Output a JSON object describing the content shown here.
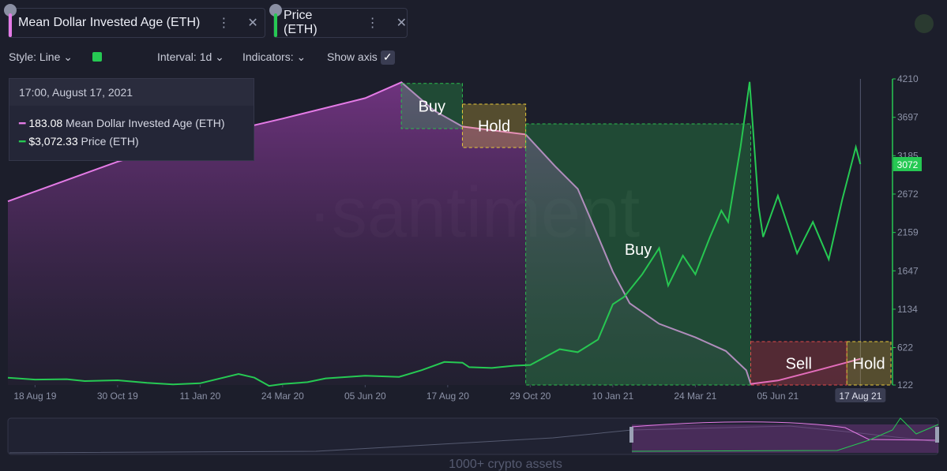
{
  "toolbar": {
    "tabs": [
      "Mean Dollar Invested Age (ETH)",
      "Price (ETH)"
    ],
    "style": "Style: Line",
    "interval": "Interval: 1d",
    "indicators": "Indicators:",
    "show_axis": "Show axis"
  },
  "tooltip": {
    "time": "17:00, August 17, 2021",
    "rows": [
      {
        "value": "183.08",
        "name": "Mean Dollar Invested Age (ETH)"
      },
      {
        "value": "$3,072.33",
        "name": "Price (ETH)"
      }
    ]
  },
  "watermark": "·santiment",
  "footer": "1000+ crypto assets",
  "chart_data": {
    "type": "line",
    "xlim": [
      "2019-07-25",
      "2021-09-13"
    ],
    "xticks": [
      {
        "value": "2019-08-18",
        "label": "18 Aug 19"
      },
      {
        "value": "2019-10-30",
        "label": "30 Oct 19"
      },
      {
        "value": "2020-01-11",
        "label": "11 Jan 20"
      },
      {
        "value": "2020-03-24",
        "label": "24 Mar 20"
      },
      {
        "value": "2020-06-05",
        "label": "05 Jun 20"
      },
      {
        "value": "2020-08-17",
        "label": "17 Aug 20"
      },
      {
        "value": "2020-10-29",
        "label": "29 Oct 20"
      },
      {
        "value": "2021-01-10",
        "label": "10 Jan 21"
      },
      {
        "value": "2021-03-24",
        "label": "24 Mar 21"
      },
      {
        "value": "2021-06-05",
        "label": "05 Jun 21"
      },
      {
        "value": "2021-08-17",
        "label": "17 Aug 21"
      }
    ],
    "ylim": [
      122,
      4210
    ],
    "yticks": [
      4210,
      3697,
      3185,
      2672,
      2159,
      1647,
      1134,
      622,
      122
    ],
    "y2lim": [
      160,
      430
    ],
    "current_price_label": "3072",
    "series": [
      {
        "name": "Mean Dollar Invested Age (ETH)",
        "color": "#e47be6",
        "axis": "y2",
        "x": [
          "2019-07-25",
          "2019-10-30",
          "2020-01-11",
          "2020-03-24",
          "2020-06-05",
          "2020-07-07",
          "2020-08-05",
          "2020-08-30",
          "2020-10-25",
          "2020-11-20",
          "2020-12-10",
          "2020-12-28",
          "2021-01-10",
          "2021-01-25",
          "2021-02-20",
          "2021-03-24",
          "2021-04-20",
          "2021-05-08",
          "2021-05-12",
          "2021-06-05",
          "2021-07-10",
          "2021-08-17"
        ],
        "values": [
          322,
          357,
          378,
          395,
          413,
          427,
          402,
          388,
          381,
          353,
          333,
          291,
          260,
          232,
          214,
          202,
          190,
          173,
          161,
          164,
          173,
          183.08
        ]
      },
      {
        "name": "Price (ETH)",
        "color": "#26c953",
        "x": [
          "2019-07-25",
          "2019-08-18",
          "2019-09-15",
          "2019-10-01",
          "2019-10-30",
          "2019-11-25",
          "2019-12-18",
          "2020-01-11",
          "2020-02-14",
          "2020-02-28",
          "2020-03-12",
          "2020-03-24",
          "2020-04-15",
          "2020-05-01",
          "2020-06-05",
          "2020-07-05",
          "2020-07-25",
          "2020-08-14",
          "2020-08-30",
          "2020-09-05",
          "2020-09-25",
          "2020-10-15",
          "2020-10-29",
          "2020-11-24",
          "2020-12-10",
          "2020-12-28",
          "2021-01-10",
          "2021-01-20",
          "2021-02-05",
          "2021-02-20",
          "2021-02-28",
          "2021-03-13",
          "2021-03-24",
          "2021-04-06",
          "2021-04-16",
          "2021-04-22",
          "2021-05-03",
          "2021-05-11",
          "2021-05-19",
          "2021-05-23",
          "2021-06-05",
          "2021-06-22",
          "2021-07-06",
          "2021-07-20",
          "2021-08-01",
          "2021-08-13",
          "2021-08-17"
        ],
        "values": [
          220,
          195,
          200,
          175,
          185,
          150,
          130,
          145,
          270,
          220,
          110,
          135,
          160,
          210,
          245,
          230,
          320,
          430,
          420,
          360,
          350,
          380,
          390,
          600,
          560,
          730,
          1200,
          1300,
          1600,
          1950,
          1450,
          1850,
          1600,
          2100,
          2450,
          2300,
          3300,
          4170,
          2500,
          2100,
          2650,
          1880,
          2300,
          1800,
          2600,
          3300,
          3072.33
        ]
      }
    ],
    "annotations": [
      {
        "label": "Buy",
        "start": "2020-07-07",
        "end": "2020-08-30",
        "top": 4150,
        "bottom": 3546,
        "color": "#2bbd4e"
      },
      {
        "label": "Hold",
        "start": "2020-08-30",
        "end": "2020-10-25",
        "top": 3873,
        "bottom": 3294,
        "color": "#e8c93b"
      },
      {
        "label": "Buy",
        "start": "2020-10-25",
        "end": "2021-05-12",
        "top": 3609,
        "bottom": 122,
        "color": "#2bbd4e"
      },
      {
        "label": "Sell",
        "start": "2021-05-12",
        "end": "2021-08-05",
        "top": 702,
        "bottom": 122,
        "color": "#e24a4a"
      },
      {
        "label": "Hold",
        "start": "2021-08-05",
        "end": "2021-09-13",
        "top": 702,
        "bottom": 122,
        "color": "#e8c93b"
      }
    ]
  }
}
